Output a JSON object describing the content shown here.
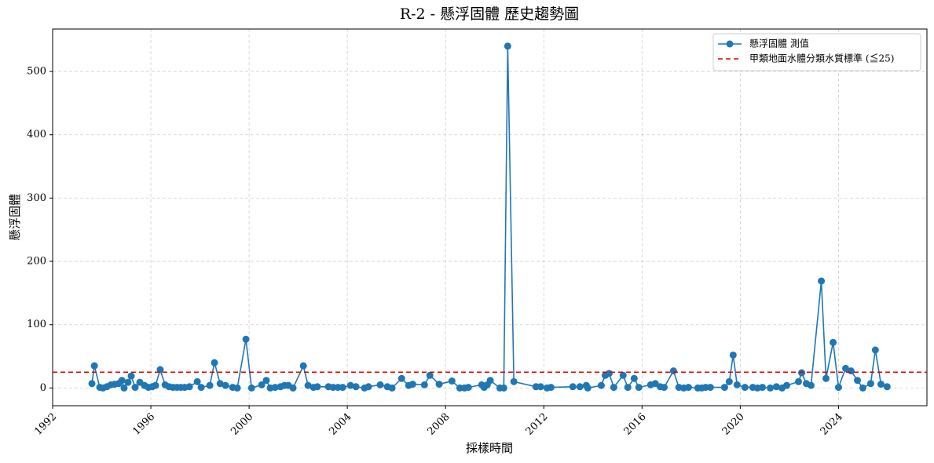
{
  "chart_data": {
    "type": "line",
    "title": "R-2 - 懸浮固體 歷史趨勢圖",
    "xlabel": "採樣時間",
    "ylabel": "懸浮固體",
    "xlim": [
      1992,
      2027.6
    ],
    "xticks": [
      1992,
      1996,
      2000,
      2004,
      2008,
      2012,
      2016,
      2020,
      2024
    ],
    "ylim": [
      -28,
      567
    ],
    "yticks": [
      0,
      100,
      200,
      300,
      400,
      500
    ],
    "grid": true,
    "legend": "upper right",
    "series": [
      {
        "name": "懸浮固體 測值",
        "color": "#1f77b4",
        "x": [
          1993.6,
          1993.7,
          1993.92,
          1994.05,
          1994.21,
          1994.37,
          1994.53,
          1994.69,
          1994.82,
          1994.91,
          1995.07,
          1995.2,
          1995.36,
          1995.55,
          1995.74,
          1995.9,
          1996.06,
          1996.19,
          1996.38,
          1996.58,
          1996.74,
          1996.9,
          1997.06,
          1997.22,
          1997.38,
          1997.57,
          1997.89,
          1998.05,
          1998.4,
          1998.59,
          1998.82,
          1999.04,
          1999.33,
          1999.52,
          1999.87,
          2000.1,
          2000.51,
          2000.7,
          2000.86,
          2001.06,
          2001.28,
          2001.44,
          2001.6,
          2001.79,
          2002.21,
          2002.4,
          2002.62,
          2002.78,
          2003.23,
          2003.42,
          2003.62,
          2003.81,
          2004.13,
          2004.35,
          2004.7,
          2004.86,
          2005.34,
          2005.63,
          2005.82,
          2006.21,
          2006.5,
          2006.66,
          2007.14,
          2007.36,
          2007.74,
          2008.26,
          2008.58,
          2008.77,
          2008.93,
          2009.47,
          2009.57,
          2009.7,
          2009.82,
          2010.21,
          2010.37,
          2010.53,
          2010.78,
          2011.68,
          2011.87,
          2012.13,
          2012.29,
          2013.18,
          2013.47,
          2013.73,
          2013.79,
          2014.34,
          2014.5,
          2014.66,
          2014.85,
          2015.23,
          2015.42,
          2015.68,
          2015.87,
          2016.35,
          2016.54,
          2016.74,
          2016.9,
          2017.28,
          2017.5,
          2017.7,
          2017.89,
          2018.27,
          2018.43,
          2018.59,
          2018.78,
          2019.36,
          2019.55,
          2019.71,
          2019.87,
          2020.19,
          2020.51,
          2020.7,
          2020.9,
          2021.22,
          2021.47,
          2021.7,
          2021.89,
          2022.37,
          2022.5,
          2022.69,
          2022.88,
          2023.3,
          2023.49,
          2023.78,
          2024.0,
          2024.29,
          2024.51,
          2024.77,
          2024.99,
          2025.31,
          2025.5,
          2025.73,
          2025.98
        ],
        "values": [
          7,
          35,
          1,
          0,
          2,
          5,
          6,
          7,
          12,
          0,
          9,
          19,
          1,
          9,
          4,
          1,
          2,
          4,
          29,
          5,
          2,
          1,
          1,
          1,
          1,
          2,
          10,
          1,
          4,
          40,
          7,
          4,
          1,
          0,
          77,
          0,
          5,
          12,
          0,
          1,
          2,
          4,
          4,
          0,
          35,
          4,
          1,
          2,
          2,
          1,
          1,
          1,
          4,
          2,
          0,
          2,
          5,
          2,
          0,
          15,
          4,
          6,
          5,
          20,
          6,
          11,
          0,
          0,
          1,
          5,
          1,
          5,
          12,
          0,
          0,
          540,
          10,
          2,
          2,
          0,
          1,
          2,
          2,
          4,
          0,
          4,
          20,
          23,
          1,
          20,
          1,
          15,
          1,
          5,
          7,
          2,
          1,
          27,
          1,
          0,
          1,
          0,
          0,
          1,
          1,
          1,
          10,
          52,
          5,
          1,
          1,
          0,
          1,
          0,
          2,
          0,
          4,
          10,
          24,
          7,
          4,
          169,
          15,
          72,
          1,
          31,
          27,
          12,
          0,
          7,
          60,
          6,
          2
        ]
      }
    ],
    "reference_line": {
      "name": "甲類地面水體分類水質標準 (≦25)",
      "value": 25,
      "color": "#e00000"
    }
  }
}
